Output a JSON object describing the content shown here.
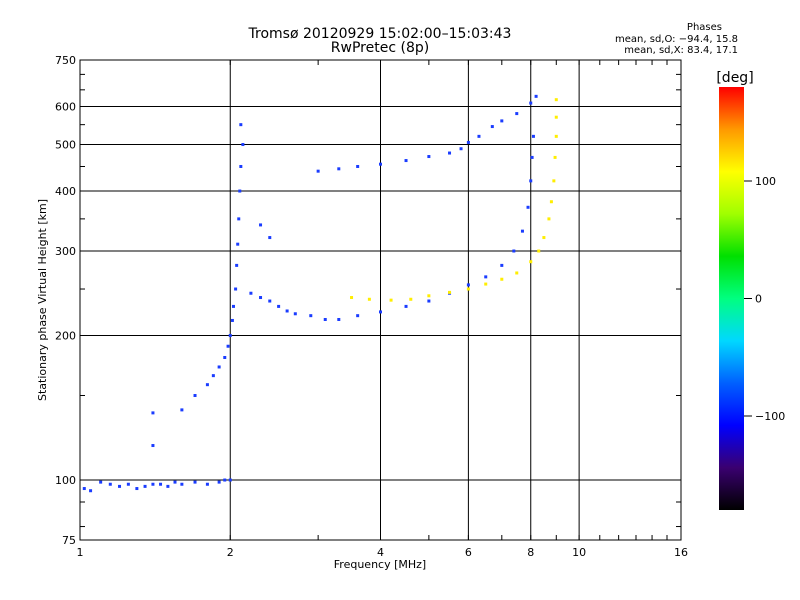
{
  "header": {
    "title_line1": "Tromsø 20120929 15:02:00–15:03:43",
    "title_line2": "RwPretec (8p)"
  },
  "phases": {
    "heading": "Phases",
    "line_o": "mean, sd,O: −94.4, 15.8",
    "line_x": "mean, sd,X:  83.4, 17.1"
  },
  "chart_data": {
    "type": "scatter",
    "xlabel": "Frequency [MHz]",
    "ylabel": "Stationary phase Virtual Height [km]",
    "x_scale": "log",
    "y_scale": "log",
    "xlim": [
      1,
      16
    ],
    "ylim": [
      75,
      750
    ],
    "x_ticks": [
      1,
      2,
      4,
      6,
      8,
      10,
      16
    ],
    "y_ticks": [
      75,
      100,
      200,
      300,
      400,
      500,
      600,
      750
    ],
    "grid": true,
    "colorbar": {
      "label": "[deg]",
      "range": [
        -180,
        180
      ],
      "ticks": [
        100,
        0,
        -100
      ],
      "colormap": [
        "#000000",
        "#3a0070",
        "#0000ff",
        "#0060ff",
        "#00d8ff",
        "#00ff80",
        "#00e000",
        "#a0ff00",
        "#ffff00",
        "#ff9900",
        "#ff0000"
      ]
    },
    "series": [
      {
        "color": "#1a3cff",
        "points": [
          [
            1.02,
            96
          ],
          [
            1.05,
            95
          ],
          [
            1.1,
            99
          ],
          [
            1.15,
            98
          ],
          [
            1.2,
            97
          ],
          [
            1.25,
            98
          ],
          [
            1.3,
            96
          ],
          [
            1.35,
            97
          ],
          [
            1.4,
            98
          ],
          [
            1.45,
            98
          ],
          [
            1.5,
            97
          ],
          [
            1.55,
            99
          ],
          [
            1.6,
            98
          ],
          [
            1.7,
            99
          ],
          [
            1.8,
            98
          ],
          [
            1.9,
            99
          ],
          [
            1.95,
            100
          ],
          [
            2.0,
            100
          ],
          [
            1.4,
            118
          ],
          [
            1.4,
            138
          ],
          [
            1.6,
            140
          ],
          [
            1.7,
            150
          ],
          [
            1.8,
            158
          ],
          [
            1.85,
            165
          ],
          [
            1.9,
            172
          ],
          [
            1.95,
            180
          ],
          [
            1.98,
            190
          ],
          [
            2.0,
            200
          ],
          [
            2.02,
            215
          ],
          [
            2.03,
            230
          ],
          [
            2.05,
            250
          ],
          [
            2.06,
            280
          ],
          [
            2.07,
            310
          ],
          [
            2.08,
            350
          ],
          [
            2.09,
            400
          ],
          [
            2.1,
            450
          ],
          [
            2.12,
            500
          ],
          [
            2.1,
            550
          ],
          [
            2.2,
            245
          ],
          [
            2.3,
            240
          ],
          [
            2.4,
            236
          ],
          [
            2.5,
            230
          ],
          [
            2.6,
            225
          ],
          [
            2.7,
            222
          ],
          [
            2.9,
            220
          ],
          [
            3.1,
            216
          ],
          [
            3.3,
            216
          ],
          [
            3.6,
            220
          ],
          [
            4.0,
            224
          ],
          [
            4.5,
            230
          ],
          [
            5.0,
            236
          ],
          [
            5.5,
            245
          ],
          [
            6.0,
            255
          ],
          [
            6.5,
            265
          ],
          [
            7.0,
            280
          ],
          [
            7.4,
            300
          ],
          [
            7.7,
            330
          ],
          [
            7.9,
            370
          ],
          [
            8.0,
            420
          ],
          [
            8.05,
            470
          ],
          [
            8.1,
            520
          ],
          [
            3.0,
            440
          ],
          [
            3.3,
            445
          ],
          [
            3.6,
            450
          ],
          [
            4.0,
            455
          ],
          [
            4.5,
            463
          ],
          [
            5.0,
            472
          ],
          [
            5.5,
            480
          ],
          [
            5.8,
            490
          ],
          [
            6.0,
            505
          ],
          [
            6.3,
            520
          ],
          [
            6.7,
            545
          ],
          [
            7.0,
            560
          ],
          [
            7.5,
            580
          ],
          [
            8.0,
            610
          ],
          [
            8.2,
            630
          ],
          [
            2.3,
            340
          ],
          [
            2.4,
            320
          ]
        ]
      },
      {
        "color": "#ffee00",
        "points": [
          [
            3.5,
            240
          ],
          [
            3.8,
            238
          ],
          [
            4.2,
            237
          ],
          [
            4.6,
            238
          ],
          [
            5.0,
            242
          ],
          [
            5.5,
            246
          ],
          [
            6.0,
            250
          ],
          [
            6.5,
            256
          ],
          [
            7.0,
            262
          ],
          [
            7.5,
            270
          ],
          [
            8.0,
            285
          ],
          [
            8.3,
            300
          ],
          [
            8.5,
            320
          ],
          [
            8.7,
            350
          ],
          [
            8.8,
            380
          ],
          [
            8.9,
            420
          ],
          [
            8.95,
            470
          ],
          [
            9.0,
            520
          ],
          [
            9.0,
            570
          ],
          [
            9.0,
            620
          ]
        ]
      }
    ]
  }
}
